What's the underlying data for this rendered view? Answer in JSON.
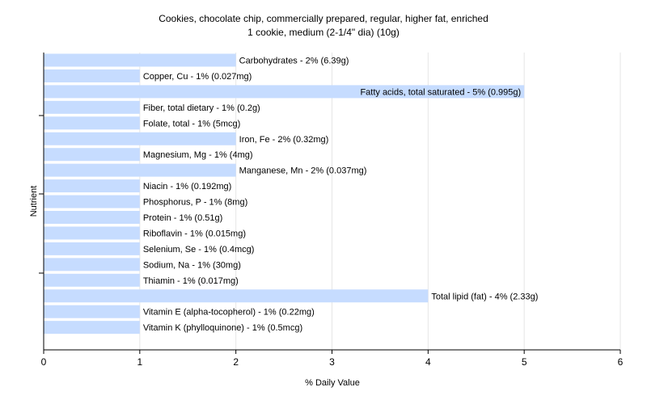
{
  "chart_data": {
    "type": "bar",
    "orientation": "horizontal",
    "title": "Cookies, chocolate chip, commercially prepared, regular, higher fat, enriched",
    "subtitle": "1 cookie, medium (2-1/4\" dia) (10g)",
    "xlabel": "% Daily Value",
    "ylabel": "Nutrient",
    "xlim": [
      0,
      6
    ],
    "xticks": [
      0,
      1,
      2,
      3,
      4,
      5,
      6
    ],
    "grid": true,
    "bar_color": "#c6dcff",
    "categories": [
      "Carbohydrates",
      "Copper, Cu",
      "Fatty acids, total saturated",
      "Fiber, total dietary",
      "Folate, total",
      "Iron, Fe",
      "Magnesium, Mg",
      "Manganese, Mn",
      "Niacin",
      "Phosphorus, P",
      "Protein",
      "Riboflavin",
      "Selenium, Se",
      "Sodium, Na",
      "Thiamin",
      "Total lipid (fat)",
      "Vitamin E (alpha-tocopherol)",
      "Vitamin K (phylloquinone)"
    ],
    "values": [
      2,
      1,
      5,
      1,
      1,
      2,
      1,
      2,
      1,
      1,
      1,
      1,
      1,
      1,
      1,
      4,
      1,
      1
    ],
    "labels": [
      "Carbohydrates - 2% (6.39g)",
      "Copper, Cu - 1% (0.027mg)",
      "Fatty acids, total saturated - 5% (0.995g)",
      "Fiber, total dietary - 1% (0.2g)",
      "Folate, total - 1% (5mcg)",
      "Iron, Fe - 2% (0.32mg)",
      "Magnesium, Mg - 1% (4mg)",
      "Manganese, Mn - 2% (0.037mg)",
      "Niacin - 1% (0.192mg)",
      "Phosphorus, P - 1% (8mg)",
      "Protein - 1% (0.51g)",
      "Riboflavin - 1% (0.015mg)",
      "Selenium, Se - 1% (0.4mcg)",
      "Sodium, Na - 1% (30mg)",
      "Thiamin - 1% (0.017mg)",
      "Total lipid (fat) - 4% (2.33g)",
      "Vitamin E (alpha-tocopherol) - 1% (0.22mg)",
      "Vitamin K (phylloquinone) - 1% (0.5mcg)"
    ]
  }
}
